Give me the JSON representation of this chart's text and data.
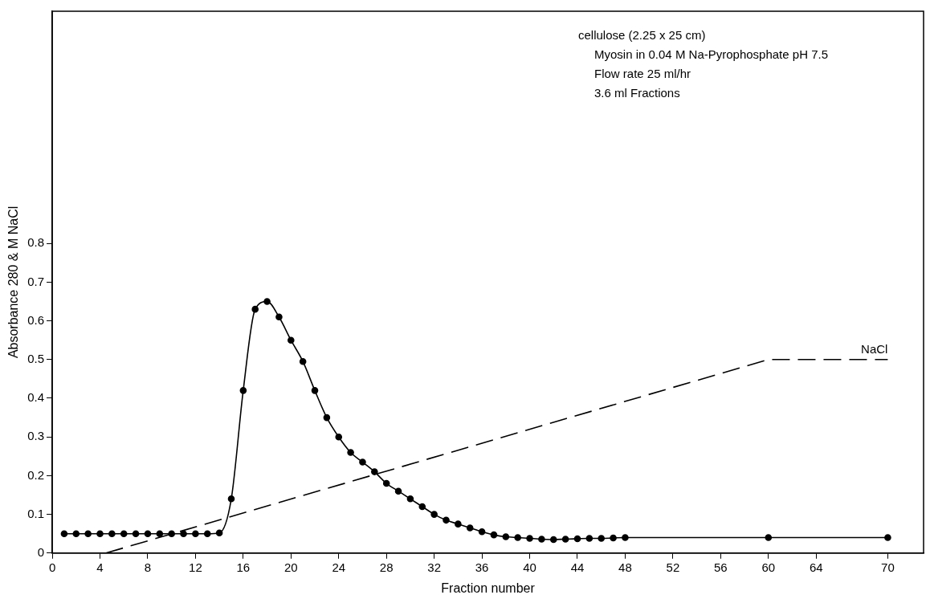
{
  "chart_data": {
    "type": "line",
    "xlabel": "Fraction number",
    "ylabel": "Absorbance 280 & M NaCl",
    "annotations": [
      "cellulose (2.25 x 25 cm)",
      "Myosin in 0.04 M Na-Pyrophosphate pH 7.5",
      "Flow rate 25 ml/hr",
      "3.6 ml Fractions"
    ],
    "xlim": [
      0,
      73
    ],
    "xticks": [
      0,
      4,
      8,
      12,
      16,
      20,
      24,
      28,
      32,
      36,
      40,
      44,
      48,
      52,
      56,
      60,
      64,
      70
    ],
    "ylim": [
      0,
      1.4
    ],
    "yticks": [
      0,
      0.1,
      0.2,
      0.3,
      0.4,
      0.5,
      0.6,
      0.7,
      0.8
    ],
    "grid": false,
    "legend": false,
    "series": [
      {
        "color": "#000000",
        "marker": "circle",
        "line_style": "solid",
        "x": [
          1,
          2,
          3,
          4,
          5,
          6,
          7,
          8,
          9,
          10,
          11,
          12,
          13,
          14,
          15,
          16,
          17,
          18,
          19,
          20,
          21,
          22,
          23,
          24,
          25,
          26,
          27,
          28,
          29,
          30,
          31,
          32,
          33,
          34,
          35,
          36,
          37,
          38,
          39,
          40,
          41,
          42,
          43,
          44,
          45,
          46,
          47,
          48,
          60,
          70
        ],
        "values": [
          0.05,
          0.05,
          0.05,
          0.05,
          0.05,
          0.05,
          0.05,
          0.05,
          0.05,
          0.05,
          0.05,
          0.05,
          0.05,
          0.052,
          0.14,
          0.42,
          0.63,
          0.65,
          0.61,
          0.55,
          0.495,
          0.42,
          0.35,
          0.3,
          0.26,
          0.235,
          0.21,
          0.18,
          0.16,
          0.14,
          0.12,
          0.1,
          0.085,
          0.075,
          0.065,
          0.055,
          0.047,
          0.042,
          0.04,
          0.038,
          0.036,
          0.035,
          0.036,
          0.037,
          0.038,
          0.038,
          0.039,
          0.04,
          0.04,
          0.04
        ]
      },
      {
        "name": "NaCl",
        "color": "#000000",
        "marker": "none",
        "line_style": "dashed",
        "x": [
          4.5,
          60,
          70
        ],
        "values": [
          0,
          0.5,
          0.5
        ]
      }
    ]
  }
}
